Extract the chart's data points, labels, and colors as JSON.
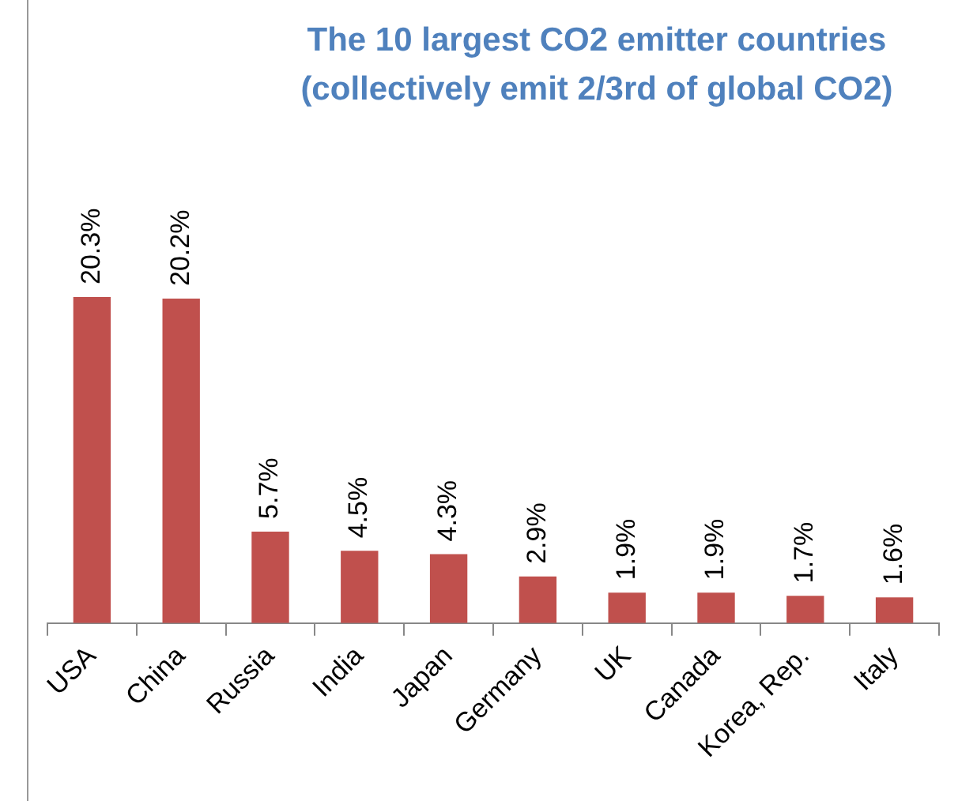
{
  "chart_data": {
    "type": "bar",
    "title": "The 10 largest CO2 emitter countries (collectively emit 2/3rd of global CO2)",
    "categories": [
      "USA",
      "China",
      "Russia",
      "India",
      "Japan",
      "Germany",
      "UK",
      "Canada",
      "Korea, Rep.",
      "Italy"
    ],
    "values": [
      20.3,
      20.2,
      5.7,
      4.5,
      4.3,
      2.9,
      1.9,
      1.9,
      1.7,
      1.6
    ],
    "value_labels": [
      "20.3%",
      "20.2%",
      "5.7%",
      "4.5%",
      "4.3%",
      "2.9%",
      "1.9%",
      "1.9%",
      "1.7%",
      "1.6%"
    ],
    "color": "#c0504d",
    "grid": false,
    "legend": false
  }
}
